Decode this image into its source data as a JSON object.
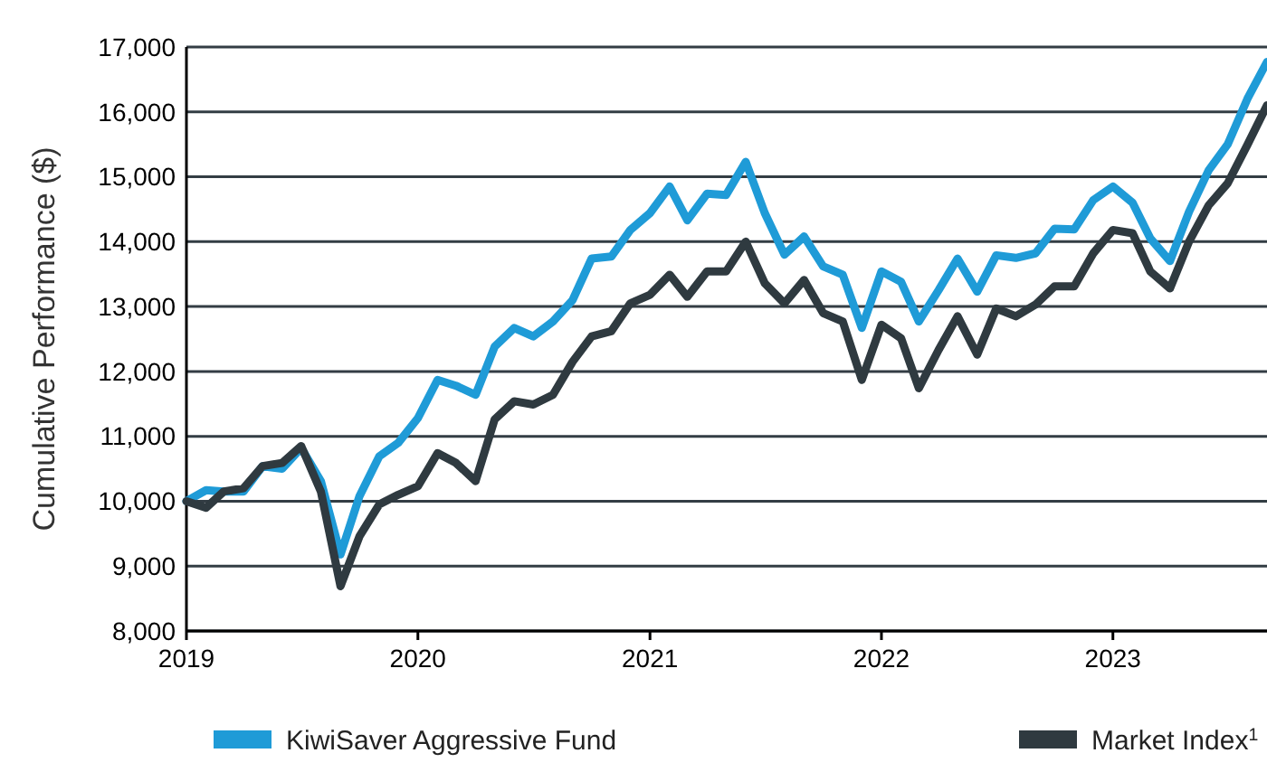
{
  "chart_data": {
    "type": "line",
    "ylabel": "Cumulative Performance ($)",
    "x": [
      "2019-01",
      "2019-02",
      "2019-03",
      "2019-04",
      "2019-05",
      "2019-06",
      "2019-07",
      "2019-08",
      "2019-09",
      "2019-10",
      "2019-11",
      "2019-12",
      "2020-01",
      "2020-02",
      "2020-03",
      "2020-04",
      "2020-05",
      "2020-06",
      "2020-07",
      "2020-08",
      "2020-09",
      "2020-10",
      "2020-11",
      "2020-12",
      "2021-01",
      "2021-02",
      "2021-03",
      "2021-04",
      "2021-05",
      "2021-06",
      "2021-07",
      "2021-08",
      "2021-09",
      "2021-10",
      "2021-11",
      "2021-12",
      "2022-01",
      "2022-02",
      "2022-03",
      "2022-04",
      "2022-05",
      "2022-06",
      "2022-07",
      "2022-08",
      "2022-09",
      "2022-10",
      "2022-11",
      "2022-12",
      "2023-01",
      "2023-02",
      "2023-03",
      "2023-04",
      "2023-05",
      "2023-06",
      "2023-07",
      "2023-08",
      "2023-09"
    ],
    "series": [
      {
        "name": "KiwiSaver Aggressive Fund",
        "color": "#1f9bd7",
        "values": [
          10000,
          10170,
          10150,
          10150,
          10540,
          10500,
          10820,
          10310,
          9180,
          10080,
          10690,
          10900,
          11280,
          11870,
          11780,
          11640,
          12380,
          12670,
          12540,
          12770,
          13100,
          13740,
          13770,
          14180,
          14440,
          14850,
          14330,
          14740,
          14720,
          15230,
          14440,
          13800,
          14080,
          13620,
          13490,
          12670,
          13540,
          13380,
          12770,
          13250,
          13740,
          13230,
          13790,
          13750,
          13820,
          14200,
          14190,
          14640,
          14850,
          14600,
          14050,
          13700,
          14460,
          15100,
          15500,
          16200,
          16770
        ]
      },
      {
        "name": "Market Index$^{1}$",
        "color": "#2f3a40",
        "values": [
          10000,
          9900,
          10150,
          10200,
          10540,
          10590,
          10850,
          10150,
          8690,
          9460,
          9950,
          10100,
          10230,
          10740,
          10590,
          10310,
          11260,
          11540,
          11490,
          11640,
          12150,
          12540,
          12620,
          13050,
          13180,
          13490,
          13150,
          13540,
          13540,
          14000,
          13360,
          13050,
          13410,
          12900,
          12770,
          11870,
          12720,
          12510,
          11740,
          12330,
          12850,
          12260,
          12970,
          12850,
          13030,
          13310,
          13310,
          13820,
          14180,
          14130,
          13540,
          13280,
          14000,
          14560,
          14900,
          15490,
          16100
        ]
      }
    ],
    "xlim": [
      "2019-01",
      "2023-09"
    ],
    "xticks": [
      {
        "value": "2019-01",
        "label": "2019"
      },
      {
        "value": "2020-01",
        "label": "2020"
      },
      {
        "value": "2021-01",
        "label": "2021"
      },
      {
        "value": "2022-01",
        "label": "2022"
      },
      {
        "value": "2023-01",
        "label": "2023"
      }
    ],
    "ylim": [
      8000,
      17000
    ],
    "yticks": [
      {
        "value": 8000,
        "label": "8,000"
      },
      {
        "value": 9000,
        "label": "9,000"
      },
      {
        "value": 10000,
        "label": "10,000"
      },
      {
        "value": 11000,
        "label": "11,000"
      },
      {
        "value": 12000,
        "label": "12,000"
      },
      {
        "value": 13000,
        "label": "13,000"
      },
      {
        "value": 14000,
        "label": "14,000"
      },
      {
        "value": 15000,
        "label": "15,000"
      },
      {
        "value": 16000,
        "label": "16,000"
      },
      {
        "value": 17000,
        "label": "17,000"
      }
    ],
    "grid": "y",
    "legend": "bottom",
    "marker": "none",
    "line_style": "solid"
  }
}
